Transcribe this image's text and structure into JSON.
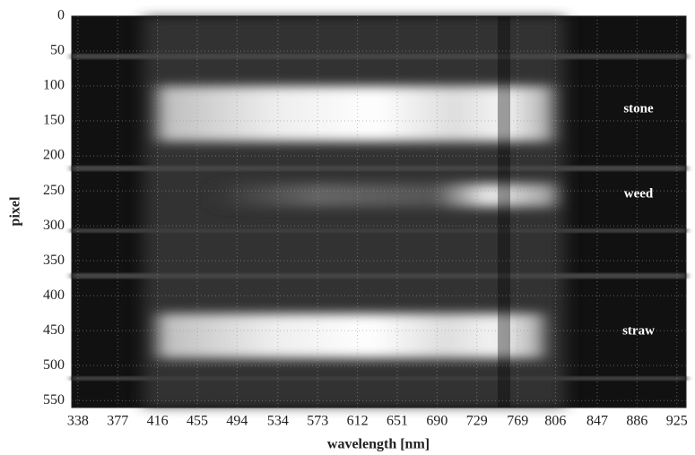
{
  "chart_data": {
    "type": "image",
    "x_label": "wavelength [nm]",
    "y_label": "pixel",
    "xlim": [
      332,
      934
    ],
    "xticks": [
      338,
      377,
      416,
      455,
      494,
      534,
      573,
      612,
      651,
      690,
      729,
      769,
      806,
      847,
      886,
      925
    ],
    "ylim": [
      0,
      560
    ],
    "yticks": [
      0,
      50,
      100,
      150,
      200,
      250,
      300,
      350,
      400,
      450,
      500,
      550
    ],
    "grid": true,
    "annotations": [
      "stone",
      "weed",
      "straw"
    ]
  }
}
